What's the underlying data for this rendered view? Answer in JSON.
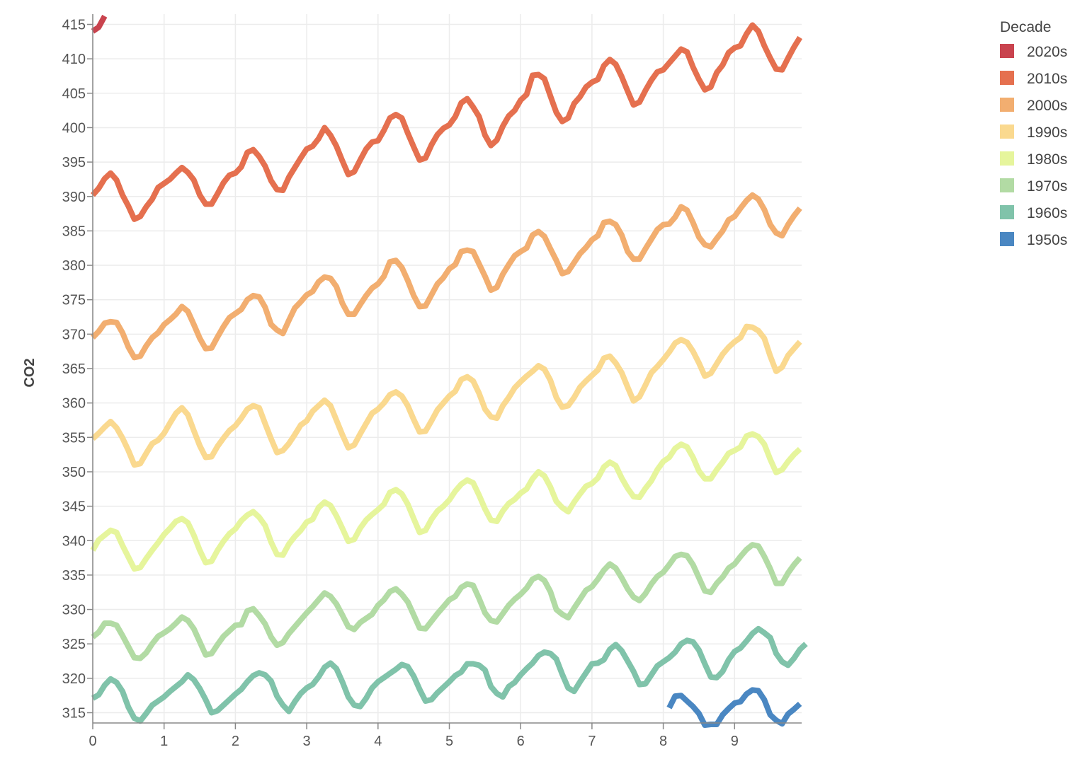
{
  "chart_data": {
    "type": "line",
    "xlabel": "",
    "ylabel": "CO2",
    "xlim": [
      0,
      9.917
    ],
    "ylim": [
      312.5,
      417
    ],
    "x_ticks": [
      "0",
      "1",
      "2",
      "3",
      "4",
      "5",
      "6",
      "7",
      "8",
      "9"
    ],
    "y_ticks": [
      "315",
      "320",
      "325",
      "330",
      "335",
      "340",
      "345",
      "350",
      "355",
      "360",
      "365",
      "370",
      "375",
      "380",
      "385",
      "390",
      "395",
      "400",
      "405",
      "410",
      "415"
    ],
    "grid": true,
    "legend": {
      "title": "Decade",
      "placement": "top-right"
    },
    "series": [
      {
        "name": "2020s",
        "color": "#c9434e",
        "x_start": 0,
        "values": [
          414.0,
          414.6,
          416.2
        ]
      },
      {
        "name": "2010s",
        "color": "#e5704f",
        "x_start": 0,
        "values": [
          390.2,
          391.2,
          392.6,
          393.4,
          392.4,
          390.2,
          388.6,
          386.7,
          387.1,
          388.5,
          389.6,
          391.3,
          391.9,
          392.5,
          393.4,
          394.2,
          393.5,
          392.4,
          390.2,
          388.9,
          388.9,
          390.4,
          392.0,
          393.1,
          393.4,
          394.3,
          396.4,
          396.8,
          395.8,
          394.4,
          392.3,
          391.0,
          390.9,
          392.8,
          394.2,
          395.6,
          396.9,
          397.3,
          398.4,
          400.0,
          398.9,
          397.3,
          395.2,
          393.2,
          393.6,
          395.3,
          396.9,
          397.9,
          398.1,
          399.6,
          401.4,
          401.9,
          401.4,
          399.2,
          397.2,
          395.3,
          395.6,
          397.5,
          399.0,
          399.9,
          400.4,
          401.6,
          403.6,
          404.2,
          403.0,
          401.6,
          398.9,
          397.4,
          398.2,
          400.2,
          401.7,
          402.5,
          404.0,
          404.8,
          407.6,
          407.7,
          407.1,
          404.6,
          402.2,
          400.9,
          401.4,
          403.5,
          404.5,
          405.9,
          406.6,
          407.0,
          409.0,
          409.9,
          409.2,
          407.4,
          405.3,
          403.3,
          403.7,
          405.4,
          406.9,
          408.1,
          408.4,
          409.4,
          410.4,
          411.4,
          411.0,
          408.8,
          407.0,
          405.5,
          405.9,
          408.0,
          409.1,
          410.9,
          411.6,
          411.9,
          413.6,
          414.9,
          414.0,
          411.9,
          410.1,
          408.5,
          408.4,
          410.1,
          411.7,
          413.1
        ]
      },
      {
        "name": "2000s",
        "color": "#f2ae70",
        "x_start": 0,
        "values": [
          369.5,
          370.4,
          371.6,
          371.8,
          371.7,
          370.2,
          368.1,
          366.6,
          366.8,
          368.3,
          369.5,
          370.2,
          371.4,
          372.1,
          372.9,
          374.0,
          373.3,
          371.4,
          369.4,
          367.9,
          368.0,
          369.6,
          371.1,
          372.4,
          373.0,
          373.6,
          375.0,
          375.6,
          375.4,
          373.9,
          371.4,
          370.6,
          370.1,
          372.0,
          373.8,
          374.7,
          375.7,
          376.2,
          377.6,
          378.3,
          378.1,
          376.9,
          374.5,
          372.9,
          372.9,
          374.3,
          375.6,
          376.7,
          377.3,
          378.4,
          380.5,
          380.7,
          379.7,
          377.8,
          375.6,
          374.0,
          374.1,
          375.7,
          377.3,
          378.2,
          379.5,
          380.1,
          382.0,
          382.2,
          382.0,
          380.2,
          378.4,
          376.4,
          376.8,
          378.7,
          380.1,
          381.4,
          382.0,
          382.5,
          384.4,
          384.9,
          384.2,
          382.4,
          380.7,
          378.8,
          379.1,
          380.4,
          381.7,
          382.6,
          383.7,
          384.3,
          386.2,
          386.4,
          385.9,
          384.4,
          382.0,
          380.9,
          380.9,
          382.4,
          383.8,
          385.2,
          385.9,
          386.0,
          387.0,
          388.5,
          388.0,
          386.2,
          384.1,
          383.0,
          382.7,
          383.9,
          385.0,
          386.6,
          387.1,
          388.3,
          389.4,
          390.2,
          389.6,
          388.1,
          385.9,
          384.7,
          384.3,
          385.9,
          387.2,
          388.3
        ]
      },
      {
        "name": "1990s",
        "color": "#fad98f",
        "x_start": 0,
        "values": [
          354.8,
          355.6,
          356.5,
          357.3,
          356.4,
          354.9,
          353.1,
          351.0,
          351.2,
          352.7,
          354.1,
          354.6,
          355.6,
          357.1,
          358.5,
          359.3,
          358.3,
          356.0,
          353.8,
          352.1,
          352.2,
          353.7,
          354.9,
          356.0,
          356.7,
          357.8,
          359.1,
          359.6,
          359.3,
          357.0,
          354.8,
          352.8,
          353.1,
          354.1,
          355.4,
          356.8,
          357.4,
          358.8,
          359.6,
          360.4,
          359.6,
          357.5,
          355.4,
          353.5,
          353.9,
          355.5,
          357.0,
          358.5,
          359.1,
          360.0,
          361.2,
          361.6,
          361.0,
          359.6,
          357.6,
          355.8,
          355.9,
          357.4,
          359.0,
          360.0,
          361.0,
          361.7,
          363.4,
          363.8,
          363.2,
          361.4,
          359.1,
          358.0,
          357.8,
          359.6,
          360.8,
          362.2,
          363.1,
          363.9,
          364.6,
          365.4,
          364.9,
          363.3,
          360.8,
          359.4,
          359.6,
          360.8,
          362.3,
          363.2,
          364.0,
          364.8,
          366.5,
          366.8,
          365.8,
          364.4,
          362.3,
          360.3,
          360.9,
          362.6,
          364.4,
          365.3,
          366.3,
          367.4,
          368.7,
          369.2,
          368.8,
          367.5,
          365.8,
          363.9,
          364.3,
          365.7,
          367.1,
          368.1,
          368.9,
          369.5,
          371.1,
          371.0,
          370.5,
          369.4,
          366.8,
          364.6,
          365.2,
          366.9,
          367.9,
          368.9
        ]
      },
      {
        "name": "1980s",
        "color": "#e6f59c",
        "x_start": 0,
        "values": [
          338.6,
          340.1,
          340.8,
          341.5,
          341.2,
          339.3,
          337.6,
          335.9,
          336.1,
          337.4,
          338.6,
          339.7,
          340.9,
          341.8,
          342.8,
          343.2,
          342.6,
          340.8,
          338.6,
          336.8,
          337.0,
          338.6,
          339.9,
          341.0,
          341.7,
          342.9,
          343.7,
          344.2,
          343.4,
          342.2,
          339.8,
          338.0,
          337.9,
          339.5,
          340.6,
          341.5,
          342.7,
          343.1,
          344.8,
          345.6,
          345.1,
          343.6,
          341.8,
          339.9,
          340.2,
          341.8,
          343.0,
          343.8,
          344.5,
          345.3,
          347.0,
          347.4,
          346.8,
          345.3,
          343.2,
          341.2,
          341.5,
          343.1,
          344.3,
          345.0,
          345.9,
          347.2,
          348.2,
          348.8,
          348.4,
          346.6,
          344.6,
          343.0,
          342.8,
          344.3,
          345.4,
          346.0,
          346.9,
          347.5,
          349.0,
          350.0,
          349.4,
          347.8,
          345.7,
          344.8,
          344.2,
          345.6,
          346.8,
          347.9,
          348.3,
          349.1,
          350.7,
          351.4,
          350.9,
          349.1,
          347.6,
          346.4,
          346.3,
          347.6,
          348.7,
          350.3,
          351.5,
          352.1,
          353.4,
          354.0,
          353.6,
          352.1,
          350.1,
          349.0,
          349.0,
          350.3,
          351.4,
          352.7,
          353.1,
          353.6,
          355.2,
          355.5,
          355.1,
          354.0,
          351.8,
          349.9,
          350.3,
          351.5,
          352.5,
          353.3
        ]
      },
      {
        "name": "1970s",
        "color": "#b2dba4",
        "x_start": 0,
        "values": [
          326.0,
          326.7,
          328.0,
          328.0,
          327.7,
          326.2,
          324.6,
          323.0,
          322.9,
          323.7,
          325.0,
          326.1,
          326.6,
          327.2,
          328.0,
          328.9,
          328.4,
          327.2,
          325.3,
          323.4,
          323.6,
          324.9,
          326.1,
          326.9,
          327.7,
          327.8,
          329.8,
          330.1,
          329.1,
          327.9,
          326.0,
          324.8,
          325.2,
          326.5,
          327.5,
          328.5,
          329.5,
          330.4,
          331.4,
          332.4,
          331.9,
          330.8,
          329.2,
          327.5,
          327.1,
          328.1,
          328.7,
          329.3,
          330.6,
          331.4,
          332.6,
          333.0,
          332.2,
          331.1,
          329.2,
          327.3,
          327.2,
          328.3,
          329.4,
          330.4,
          331.4,
          331.9,
          333.2,
          333.7,
          333.5,
          331.6,
          329.5,
          328.4,
          328.2,
          329.4,
          330.6,
          331.5,
          332.2,
          333.1,
          334.4,
          334.8,
          334.2,
          332.6,
          330.0,
          329.3,
          328.8,
          330.2,
          331.5,
          332.8,
          333.3,
          334.4,
          335.7,
          336.6,
          336.0,
          334.6,
          333.0,
          331.8,
          331.3,
          332.3,
          333.7,
          334.8,
          335.4,
          336.5,
          337.7,
          338.0,
          337.8,
          336.5,
          334.6,
          332.7,
          332.5,
          333.8,
          334.7,
          336.0,
          336.6,
          337.7,
          338.7,
          339.4,
          339.2,
          337.7,
          335.9,
          333.8,
          333.8,
          335.3,
          336.5,
          337.5
        ]
      },
      {
        "name": "1960s",
        "color": "#80c3aa",
        "x_start": 0,
        "values": [
          317.1,
          317.6,
          319.0,
          319.9,
          319.4,
          318.1,
          315.8,
          314.2,
          313.8,
          314.9,
          316.1,
          316.7,
          317.3,
          318.1,
          318.8,
          319.5,
          320.5,
          319.8,
          318.5,
          316.9,
          315.0,
          315.3,
          316.1,
          316.9,
          317.7,
          318.4,
          319.5,
          320.4,
          320.8,
          320.5,
          319.6,
          317.4,
          316.1,
          315.2,
          316.6,
          317.8,
          318.6,
          319.1,
          320.2,
          321.6,
          322.2,
          321.4,
          319.5,
          317.3,
          316.1,
          315.9,
          317.1,
          318.6,
          319.5,
          320.1,
          320.7,
          321.3,
          322.0,
          321.7,
          320.3,
          318.4,
          316.7,
          316.9,
          317.9,
          318.7,
          319.5,
          320.4,
          320.9,
          322.1,
          322.1,
          321.9,
          321.2,
          318.8,
          317.8,
          317.3,
          318.8,
          319.4,
          320.5,
          321.4,
          322.2,
          323.3,
          323.8,
          323.6,
          322.8,
          320.6,
          318.6,
          318.1,
          319.5,
          320.8,
          322.1,
          322.2,
          322.7,
          324.2,
          324.9,
          324.0,
          322.5,
          321.0,
          319.1,
          319.2,
          320.5,
          321.8,
          322.4,
          323.0,
          323.8,
          325.0,
          325.5,
          325.3,
          324.1,
          322.1,
          320.2,
          320.1,
          321.0,
          322.7,
          323.9,
          324.4,
          325.4,
          326.5,
          327.2,
          326.6,
          325.9,
          323.6,
          322.4,
          321.9,
          322.9,
          324.2,
          325.0
        ]
      },
      {
        "name": "1950s",
        "color": "#4a87c2",
        "x_start": 8.083,
        "values": [
          315.7,
          317.4,
          317.5,
          316.7,
          315.9,
          314.9,
          313.2,
          313.3,
          313.3,
          314.7,
          315.6,
          316.4,
          316.6,
          317.7,
          318.3,
          318.2,
          316.9,
          314.7,
          313.9,
          313.4,
          314.8,
          315.5,
          316.3
        ]
      }
    ]
  }
}
